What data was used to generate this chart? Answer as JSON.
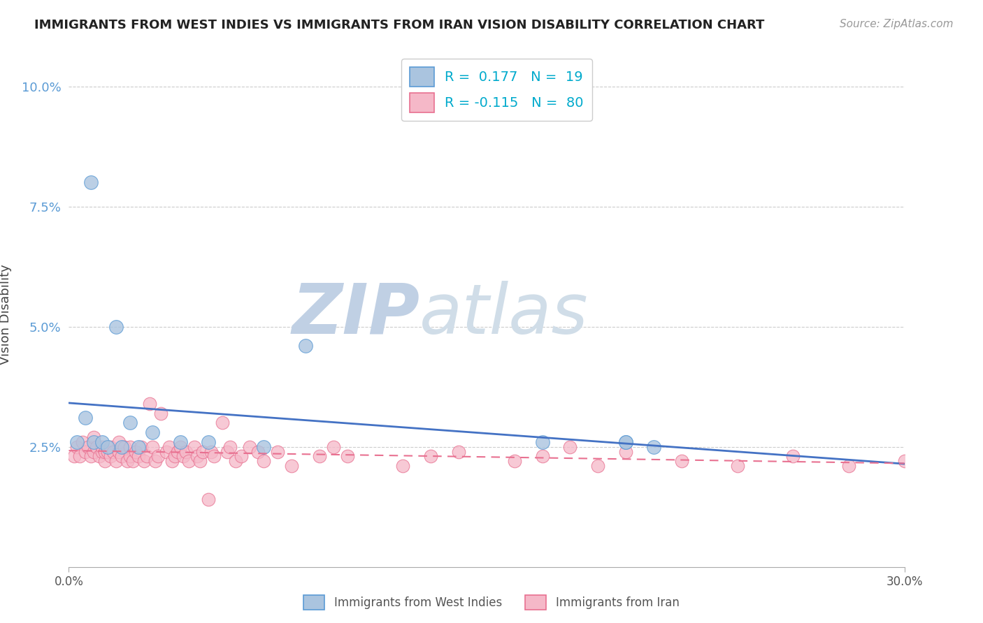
{
  "title": "IMMIGRANTS FROM WEST INDIES VS IMMIGRANTS FROM IRAN VISION DISABILITY CORRELATION CHART",
  "source": "Source: ZipAtlas.com",
  "ylabel": "Vision Disability",
  "xlim": [
    0.0,
    0.3
  ],
  "ylim": [
    0.0,
    0.105
  ],
  "ytick_positions": [
    0.025,
    0.05,
    0.075,
    0.1
  ],
  "ytick_labels": [
    "2.5%",
    "5.0%",
    "7.5%",
    "10.0%"
  ],
  "xtick_positions": [
    0.0,
    0.3
  ],
  "xtick_labels": [
    "0.0%",
    "30.0%"
  ],
  "background_color": "#ffffff",
  "grid_color": "#cccccc",
  "watermark_zip": "ZIP",
  "watermark_atlas": "atlas",
  "watermark_color_zip": "#b8cfe8",
  "watermark_color_atlas": "#c8dae8",
  "west_indies_scatter_color": "#aac4df",
  "west_indies_edge_color": "#5b9bd5",
  "iran_scatter_color": "#f5b8c8",
  "iran_edge_color": "#e87090",
  "west_indies_line_color": "#4472c4",
  "iran_line_color": "#e87090",
  "legend_R_west_indies": "R =  0.177",
  "legend_N_west_indies": "N =  19",
  "legend_R_iran": "R = -0.115",
  "legend_N_iran": "N =  80",
  "ytick_color": "#5b9bd5",
  "west_indies_x": [
    0.003,
    0.006,
    0.008,
    0.009,
    0.012,
    0.014,
    0.017,
    0.019,
    0.022,
    0.025,
    0.03,
    0.04,
    0.05,
    0.07,
    0.085,
    0.17,
    0.2,
    0.2,
    0.21
  ],
  "west_indies_y": [
    0.026,
    0.031,
    0.08,
    0.026,
    0.026,
    0.025,
    0.05,
    0.025,
    0.03,
    0.025,
    0.028,
    0.026,
    0.026,
    0.025,
    0.046,
    0.026,
    0.026,
    0.026,
    0.025
  ],
  "iran_x": [
    0.002,
    0.003,
    0.004,
    0.005,
    0.006,
    0.007,
    0.008,
    0.009,
    0.009,
    0.01,
    0.011,
    0.012,
    0.012,
    0.013,
    0.013,
    0.014,
    0.015,
    0.015,
    0.016,
    0.017,
    0.018,
    0.018,
    0.019,
    0.02,
    0.021,
    0.022,
    0.022,
    0.023,
    0.024,
    0.025,
    0.026,
    0.027,
    0.028,
    0.029,
    0.03,
    0.031,
    0.032,
    0.033,
    0.035,
    0.036,
    0.037,
    0.038,
    0.039,
    0.04,
    0.041,
    0.042,
    0.043,
    0.045,
    0.046,
    0.047,
    0.048,
    0.05,
    0.051,
    0.052,
    0.055,
    0.057,
    0.058,
    0.06,
    0.062,
    0.065,
    0.068,
    0.07,
    0.075,
    0.08,
    0.09,
    0.095,
    0.1,
    0.12,
    0.13,
    0.14,
    0.16,
    0.17,
    0.18,
    0.19,
    0.2,
    0.22,
    0.24,
    0.26,
    0.28,
    0.3
  ],
  "iran_y": [
    0.023,
    0.025,
    0.023,
    0.026,
    0.024,
    0.025,
    0.023,
    0.027,
    0.024,
    0.025,
    0.023,
    0.024,
    0.025,
    0.022,
    0.024,
    0.024,
    0.023,
    0.025,
    0.024,
    0.022,
    0.024,
    0.026,
    0.023,
    0.025,
    0.022,
    0.025,
    0.023,
    0.022,
    0.024,
    0.023,
    0.025,
    0.022,
    0.023,
    0.034,
    0.025,
    0.022,
    0.023,
    0.032,
    0.024,
    0.025,
    0.022,
    0.023,
    0.024,
    0.025,
    0.023,
    0.024,
    0.022,
    0.025,
    0.023,
    0.022,
    0.024,
    0.014,
    0.024,
    0.023,
    0.03,
    0.024,
    0.025,
    0.022,
    0.023,
    0.025,
    0.024,
    0.022,
    0.024,
    0.021,
    0.023,
    0.025,
    0.023,
    0.021,
    0.023,
    0.024,
    0.022,
    0.023,
    0.025,
    0.021,
    0.024,
    0.022,
    0.021,
    0.023,
    0.021,
    0.022
  ]
}
